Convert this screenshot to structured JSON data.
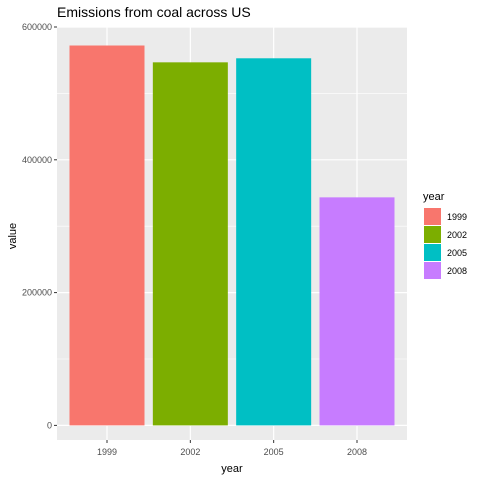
{
  "chart_data": {
    "type": "bar",
    "title": "Emissions from coal across US",
    "xlabel": "year",
    "ylabel": "value",
    "categories": [
      "1999",
      "2002",
      "2005",
      "2008"
    ],
    "values": [
      572126,
      546789,
      552881,
      343432
    ],
    "ylim": [
      -22000,
      600000
    ],
    "yticks": [
      0,
      200000,
      400000,
      600000
    ],
    "ytick_labels": [
      "0",
      "200000",
      "400000",
      "600000"
    ],
    "colors": [
      "#F8766D",
      "#7CAE00",
      "#00BFC4",
      "#C77CFF"
    ],
    "legend": {
      "title": "year",
      "position": "right",
      "entries": [
        "1999",
        "2002",
        "2005",
        "2008"
      ]
    },
    "grid": true,
    "panel_background": "#EBEBEB"
  }
}
